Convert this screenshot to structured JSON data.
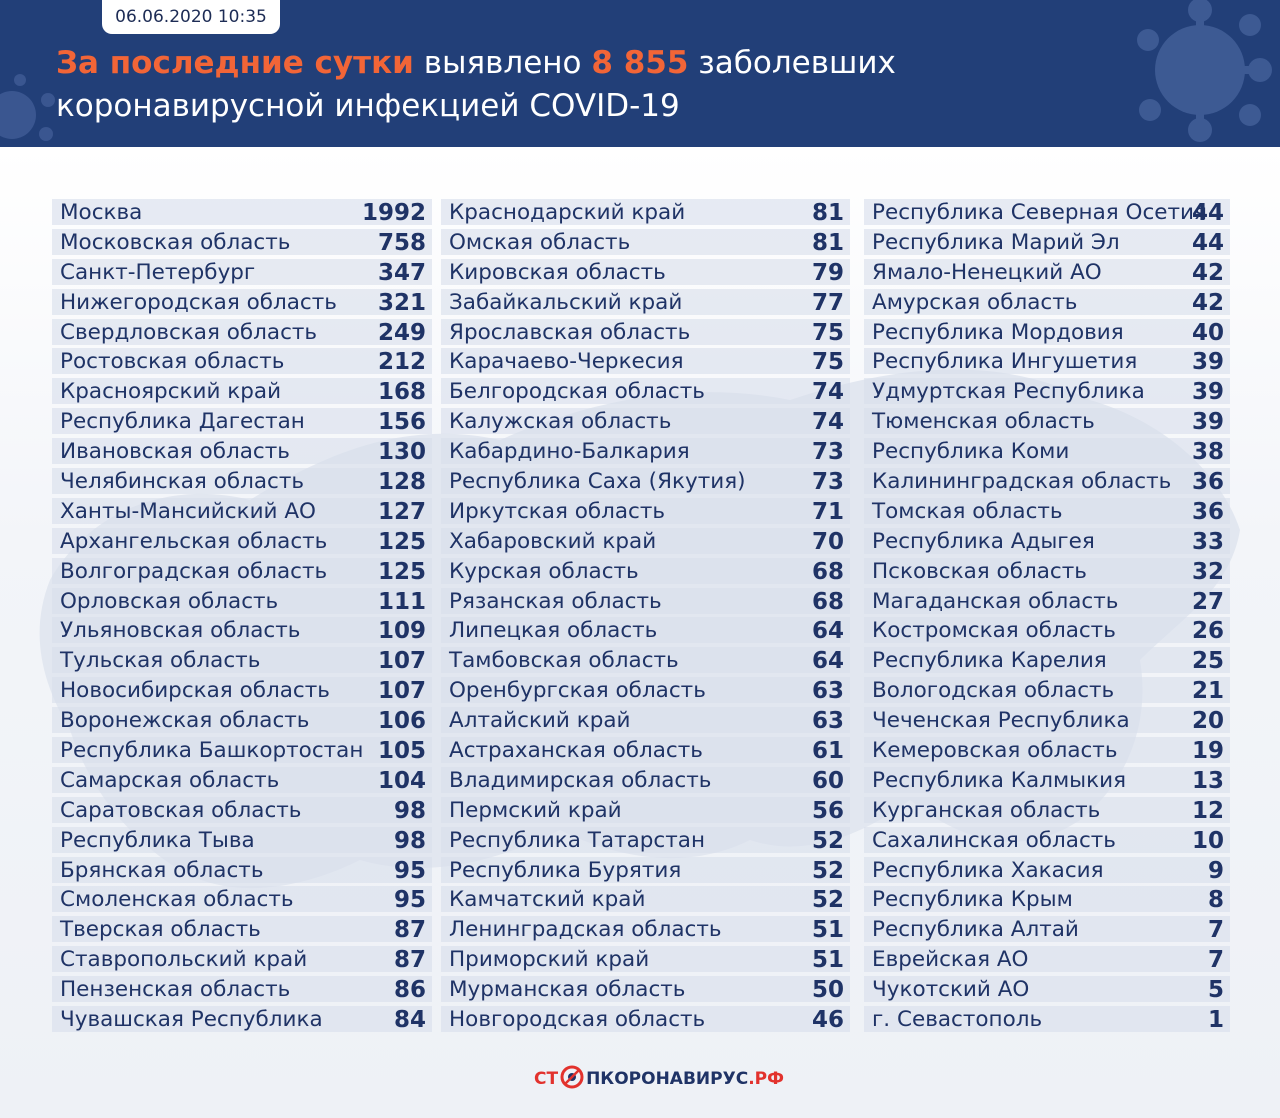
{
  "header": {
    "date": "06.06.2020 10:35",
    "title_accent": "За последние сутки",
    "title_mid": " выявлено ",
    "title_number": "8 855",
    "title_rest": " заболевших",
    "title_line2": "коронавирусной инфекцией COVID-19"
  },
  "footer": {
    "logo_part1": "СТ",
    "logo_part2": "ПКОРОНАВИРУС",
    "logo_part3": ".РФ"
  },
  "colors": {
    "header_bg": "#223f78",
    "accent": "#f26537",
    "text": "#1f3366",
    "row_bg": "#d8dfec"
  },
  "columns": [
    [
      {
        "name": "Москва",
        "value": "1992"
      },
      {
        "name": "Московская область",
        "value": "758"
      },
      {
        "name": "Санкт-Петербург",
        "value": "347"
      },
      {
        "name": "Нижегородская область",
        "value": "321"
      },
      {
        "name": "Свердловская область",
        "value": "249"
      },
      {
        "name": "Ростовская область",
        "value": "212"
      },
      {
        "name": "Красноярский край",
        "value": "168"
      },
      {
        "name": "Республика Дагестан",
        "value": "156"
      },
      {
        "name": "Ивановская область",
        "value": "130"
      },
      {
        "name": "Челябинская область",
        "value": "128"
      },
      {
        "name": "Ханты-Мансийский АО",
        "value": "127"
      },
      {
        "name": "Архангельская область",
        "value": "125"
      },
      {
        "name": "Волгоградская область",
        "value": "125"
      },
      {
        "name": "Орловская область",
        "value": "111"
      },
      {
        "name": "Ульяновская область",
        "value": "109"
      },
      {
        "name": "Тульская область",
        "value": "107"
      },
      {
        "name": "Новосибирская область",
        "value": "107"
      },
      {
        "name": "Воронежская область",
        "value": "106"
      },
      {
        "name": "Республика Башкортостан",
        "value": "105"
      },
      {
        "name": "Самарская область",
        "value": "104"
      },
      {
        "name": "Саратовская область",
        "value": "98"
      },
      {
        "name": "Республика Тыва",
        "value": "98"
      },
      {
        "name": "Брянская область",
        "value": "95"
      },
      {
        "name": "Смоленская область",
        "value": "95"
      },
      {
        "name": "Тверская область",
        "value": "87"
      },
      {
        "name": "Ставропольский край",
        "value": "87"
      },
      {
        "name": "Пензенская область",
        "value": "86"
      },
      {
        "name": "Чувашская Республика",
        "value": "84"
      }
    ],
    [
      {
        "name": "Краснодарский край",
        "value": "81"
      },
      {
        "name": "Омская область",
        "value": "81"
      },
      {
        "name": "Кировская область",
        "value": "79"
      },
      {
        "name": "Забайкальский край",
        "value": "77"
      },
      {
        "name": "Ярославская область",
        "value": "75"
      },
      {
        "name": "Карачаево-Черкесия",
        "value": "75"
      },
      {
        "name": "Белгородская область",
        "value": "74"
      },
      {
        "name": "Калужская область",
        "value": "74"
      },
      {
        "name": "Кабардино-Балкария",
        "value": "73"
      },
      {
        "name": "Республика Саха (Якутия)",
        "value": "73"
      },
      {
        "name": "Иркутская область",
        "value": "71"
      },
      {
        "name": "Хабаровский край",
        "value": "70"
      },
      {
        "name": "Курская область",
        "value": "68"
      },
      {
        "name": "Рязанская область",
        "value": "68"
      },
      {
        "name": "Липецкая область",
        "value": "64"
      },
      {
        "name": "Тамбовская область",
        "value": "64"
      },
      {
        "name": "Оренбургская область",
        "value": "63"
      },
      {
        "name": "Алтайский край",
        "value": "63"
      },
      {
        "name": "Астраханская область",
        "value": "61"
      },
      {
        "name": "Владимирская область",
        "value": "60"
      },
      {
        "name": "Пермский край",
        "value": "56"
      },
      {
        "name": "Республика Татарстан",
        "value": "52"
      },
      {
        "name": "Республика Бурятия",
        "value": "52"
      },
      {
        "name": "Камчатский край",
        "value": "52"
      },
      {
        "name": "Ленинградская область",
        "value": "51"
      },
      {
        "name": "Приморский край",
        "value": "51"
      },
      {
        "name": "Мурманская область",
        "value": "50"
      },
      {
        "name": "Новгородская область",
        "value": "46"
      }
    ],
    [
      {
        "name": "Республика Северная Осетия",
        "value": "44"
      },
      {
        "name": "Республика Марий Эл",
        "value": "44"
      },
      {
        "name": "Ямало-Ненецкий АО",
        "value": "42"
      },
      {
        "name": "Амурская область",
        "value": "42"
      },
      {
        "name": "Республика Мордовия",
        "value": "40"
      },
      {
        "name": "Республика Ингушетия",
        "value": "39"
      },
      {
        "name": "Удмуртская Республика",
        "value": "39"
      },
      {
        "name": "Тюменская область",
        "value": "39"
      },
      {
        "name": "Республика Коми",
        "value": "38"
      },
      {
        "name": "Калининградская область",
        "value": "36"
      },
      {
        "name": "Томская область",
        "value": "36"
      },
      {
        "name": "Республика Адыгея",
        "value": "33"
      },
      {
        "name": "Псковская область",
        "value": "32"
      },
      {
        "name": "Магаданская область",
        "value": "27"
      },
      {
        "name": "Костромская область",
        "value": "26"
      },
      {
        "name": "Республика Карелия",
        "value": "25"
      },
      {
        "name": "Вологодская область",
        "value": "21"
      },
      {
        "name": "Чеченская Республика",
        "value": "20"
      },
      {
        "name": "Кемеровская область",
        "value": "19"
      },
      {
        "name": "Республика Калмыкия",
        "value": "13"
      },
      {
        "name": "Курганская область",
        "value": "12"
      },
      {
        "name": "Сахалинская область",
        "value": "10"
      },
      {
        "name": "Республика Хакасия",
        "value": "9"
      },
      {
        "name": "Республика Крым",
        "value": "8"
      },
      {
        "name": "Республика Алтай",
        "value": "7"
      },
      {
        "name": "Еврейская АО",
        "value": "7"
      },
      {
        "name": "Чукотский АО",
        "value": "5"
      },
      {
        "name": "г. Севастополь",
        "value": "1"
      }
    ]
  ]
}
